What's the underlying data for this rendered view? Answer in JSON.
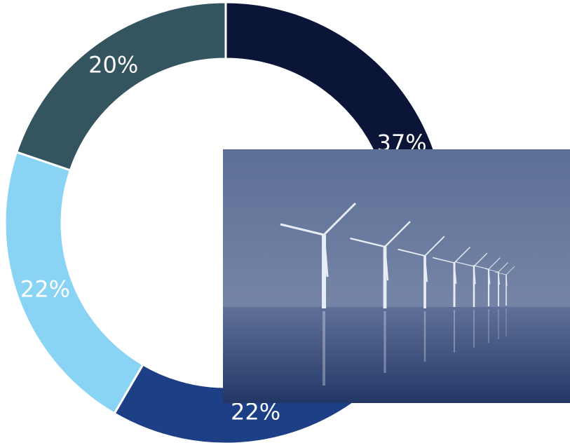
{
  "chart_data": {
    "type": "pie",
    "donut": true,
    "values": [
      37,
      22,
      22,
      20
    ],
    "value_labels": [
      "37%",
      "22%",
      "22%",
      "20%"
    ],
    "colors": [
      "#0b1538",
      "#1c3f86",
      "#89d3f4",
      "#34545f"
    ]
  }
}
